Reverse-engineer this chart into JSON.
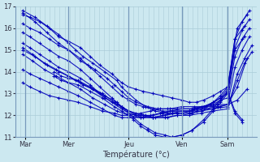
{
  "title": "",
  "xlabel": "Température (°c)",
  "ylabel": "",
  "xlim": [
    0,
    1
  ],
  "ylim": [
    11,
    17
  ],
  "yticks": [
    11,
    12,
    13,
    14,
    15,
    16,
    17
  ],
  "xtick_positions": [
    0.04,
    0.22,
    0.47,
    0.69,
    0.88
  ],
  "xtick_labels": [
    "Mar",
    "Mer",
    "Jeu",
    "Ven",
    "Sam"
  ],
  "background_color": "#cce8f0",
  "grid_color": "#aaccd8",
  "line_color": "#0000bb",
  "vline_positions": [
    0.04,
    0.22,
    0.47,
    0.69,
    0.88
  ],
  "series": [
    {
      "x": [
        0.03,
        0.06,
        0.1,
        0.14,
        0.18,
        0.22,
        0.27,
        0.31,
        0.35,
        0.4,
        0.44,
        0.47,
        0.5,
        0.53,
        0.57,
        0.61,
        0.65,
        0.69,
        0.72,
        0.75,
        0.78,
        0.82,
        0.85,
        0.88,
        0.91,
        0.94,
        0.97
      ],
      "y": [
        16.6,
        16.5,
        16.3,
        16.0,
        15.6,
        15.4,
        15.1,
        14.7,
        14.3,
        13.9,
        13.5,
        13.3,
        13.2,
        13.1,
        13.0,
        12.9,
        12.8,
        12.7,
        12.6,
        12.6,
        12.7,
        12.9,
        13.1,
        13.3,
        15.5,
        16.3,
        16.8
      ]
    },
    {
      "x": [
        0.03,
        0.06,
        0.1,
        0.14,
        0.18,
        0.22,
        0.27,
        0.31,
        0.35,
        0.4,
        0.44,
        0.47,
        0.5,
        0.53,
        0.57,
        0.61,
        0.65,
        0.69,
        0.72,
        0.75,
        0.78,
        0.82,
        0.85,
        0.88,
        0.91,
        0.94,
        0.97
      ],
      "y": [
        16.2,
        16.0,
        15.8,
        15.5,
        15.2,
        15.0,
        14.6,
        14.2,
        13.8,
        13.3,
        12.9,
        12.7,
        12.5,
        12.4,
        12.3,
        12.2,
        12.2,
        12.2,
        12.2,
        12.3,
        12.4,
        12.6,
        12.8,
        13.0,
        15.1,
        15.9,
        16.4
      ]
    },
    {
      "x": [
        0.03,
        0.06,
        0.1,
        0.14,
        0.18,
        0.22,
        0.27,
        0.31,
        0.35,
        0.4,
        0.44,
        0.47,
        0.5,
        0.53,
        0.57,
        0.61,
        0.65,
        0.69,
        0.72,
        0.75,
        0.78,
        0.82,
        0.85,
        0.88,
        0.91,
        0.94,
        0.97
      ],
      "y": [
        15.8,
        15.6,
        15.3,
        15.0,
        14.7,
        14.5,
        14.1,
        13.7,
        13.3,
        12.8,
        12.4,
        12.2,
        12.0,
        11.9,
        11.9,
        12.0,
        12.1,
        12.2,
        12.2,
        12.3,
        12.4,
        12.5,
        12.7,
        12.8,
        14.7,
        15.5,
        16.0
      ]
    },
    {
      "x": [
        0.03,
        0.06,
        0.1,
        0.14,
        0.18,
        0.22,
        0.27,
        0.31,
        0.35,
        0.4,
        0.44,
        0.47,
        0.5,
        0.53,
        0.57,
        0.61,
        0.65,
        0.69,
        0.72,
        0.75,
        0.78,
        0.82,
        0.85,
        0.88,
        0.91,
        0.94,
        0.97
      ],
      "y": [
        15.3,
        15.1,
        14.8,
        14.5,
        14.2,
        14.0,
        13.7,
        13.4,
        13.0,
        12.6,
        12.3,
        12.1,
        12.0,
        12.0,
        12.0,
        12.1,
        12.2,
        12.2,
        12.2,
        12.2,
        12.3,
        12.3,
        12.4,
        12.5,
        14.2,
        15.0,
        15.6
      ]
    },
    {
      "x": [
        0.03,
        0.07,
        0.12,
        0.17,
        0.22,
        0.27,
        0.32,
        0.37,
        0.42,
        0.47,
        0.52,
        0.57,
        0.62,
        0.67,
        0.72,
        0.77,
        0.82,
        0.88,
        0.92,
        0.95,
        0.98
      ],
      "y": [
        15.1,
        14.8,
        14.4,
        14.1,
        13.8,
        13.5,
        13.2,
        12.8,
        12.5,
        12.2,
        12.0,
        11.9,
        11.9,
        12.0,
        12.0,
        12.1,
        12.2,
        12.3,
        13.9,
        14.6,
        15.2
      ]
    },
    {
      "x": [
        0.03,
        0.07,
        0.12,
        0.17,
        0.22,
        0.27,
        0.32,
        0.37,
        0.42,
        0.47,
        0.52,
        0.57,
        0.62,
        0.67,
        0.72,
        0.77,
        0.82,
        0.88,
        0.92,
        0.95,
        0.98
      ],
      "y": [
        14.8,
        14.5,
        14.1,
        13.8,
        13.5,
        13.2,
        12.8,
        12.5,
        12.2,
        12.0,
        11.9,
        11.9,
        12.0,
        12.1,
        12.1,
        12.2,
        12.3,
        12.4,
        13.6,
        14.4,
        14.9
      ]
    },
    {
      "x": [
        0.03,
        0.06,
        0.1,
        0.14,
        0.18,
        0.22,
        0.26,
        0.31,
        0.36,
        0.41,
        0.44,
        0.47,
        0.52,
        0.56,
        0.6,
        0.64,
        0.69,
        0.74,
        0.79,
        0.84,
        0.88,
        0.92,
        0.96
      ],
      "y": [
        14.1,
        13.9,
        13.7,
        13.5,
        13.3,
        13.1,
        12.9,
        12.6,
        12.3,
        12.0,
        11.9,
        11.9,
        11.9,
        12.0,
        12.1,
        12.2,
        12.3,
        12.3,
        12.4,
        12.4,
        12.5,
        13.3,
        14.6
      ]
    },
    {
      "x": [
        0.03,
        0.06,
        0.1,
        0.14,
        0.18,
        0.22,
        0.26,
        0.31,
        0.36,
        0.41,
        0.44,
        0.47,
        0.52,
        0.56,
        0.6,
        0.64,
        0.69,
        0.74,
        0.79,
        0.84,
        0.88,
        0.92,
        0.96
      ],
      "y": [
        13.5,
        13.3,
        13.1,
        12.9,
        12.8,
        12.7,
        12.6,
        12.4,
        12.2,
        12.1,
        12.0,
        12.0,
        12.1,
        12.2,
        12.3,
        12.3,
        12.4,
        12.4,
        12.4,
        12.5,
        12.5,
        12.7,
        13.2
      ]
    },
    {
      "x": [
        0.03,
        0.08,
        0.13,
        0.18,
        0.22,
        0.27,
        0.3,
        0.33,
        0.38,
        0.41,
        0.44,
        0.47,
        0.5,
        0.55,
        0.59,
        0.63,
        0.67,
        0.69,
        0.73,
        0.77,
        0.81,
        0.85,
        0.88,
        0.91,
        0.95
      ],
      "y": [
        16.7,
        16.3,
        15.8,
        15.3,
        15.0,
        14.5,
        14.3,
        14.1,
        13.7,
        13.4,
        13.1,
        12.8,
        12.6,
        12.4,
        12.3,
        12.3,
        12.3,
        12.3,
        12.3,
        12.4,
        12.5,
        12.8,
        13.2,
        15.5,
        16.1
      ]
    },
    {
      "x": [
        0.03,
        0.08,
        0.13,
        0.18,
        0.22,
        0.25,
        0.28,
        0.32,
        0.37,
        0.42,
        0.44,
        0.47,
        0.5,
        0.54,
        0.58,
        0.63,
        0.67,
        0.69,
        0.73,
        0.77,
        0.82,
        0.85,
        0.88,
        0.91,
        0.95
      ],
      "y": [
        15.0,
        14.7,
        14.3,
        14.0,
        13.8,
        13.6,
        13.4,
        13.2,
        12.9,
        12.6,
        12.4,
        12.2,
        12.1,
        12.0,
        11.9,
        11.9,
        12.0,
        12.0,
        12.1,
        12.2,
        12.4,
        12.7,
        13.1,
        15.0,
        15.6
      ]
    },
    {
      "x": [
        0.03,
        0.08,
        0.13,
        0.18,
        0.22,
        0.25,
        0.28,
        0.32,
        0.37,
        0.42,
        0.44,
        0.47,
        0.5,
        0.54,
        0.58,
        0.63,
        0.67,
        0.69,
        0.73,
        0.77,
        0.82,
        0.85,
        0.88,
        0.92,
        0.96
      ],
      "y": [
        16.8,
        16.5,
        16.1,
        15.7,
        15.3,
        15.0,
        14.7,
        14.4,
        14.0,
        13.6,
        13.3,
        13.0,
        12.7,
        12.4,
        12.2,
        12.1,
        12.1,
        12.1,
        12.2,
        12.3,
        12.6,
        12.9,
        13.3,
        16.0,
        16.6
      ]
    },
    {
      "x": [
        0.16,
        0.19,
        0.22,
        0.26,
        0.31,
        0.36,
        0.41,
        0.44,
        0.47,
        0.49,
        0.52,
        0.55,
        0.58,
        0.62,
        0.65,
        0.69,
        0.73,
        0.78,
        0.82,
        0.85,
        0.88,
        0.91,
        0.94
      ],
      "y": [
        14.0,
        13.8,
        13.7,
        13.6,
        13.3,
        13.0,
        12.6,
        12.4,
        12.1,
        11.9,
        11.6,
        11.4,
        11.2,
        11.1,
        11.0,
        11.1,
        11.3,
        11.7,
        12.2,
        12.6,
        13.0,
        12.1,
        11.7
      ]
    },
    {
      "x": [
        0.16,
        0.19,
        0.22,
        0.26,
        0.31,
        0.36,
        0.41,
        0.44,
        0.47,
        0.49,
        0.52,
        0.55,
        0.58,
        0.62,
        0.65,
        0.69,
        0.73,
        0.78,
        0.82,
        0.85,
        0.88,
        0.91,
        0.94
      ],
      "y": [
        13.8,
        13.6,
        13.5,
        13.4,
        13.1,
        12.8,
        12.4,
        12.2,
        12.0,
        11.8,
        11.5,
        11.3,
        11.1,
        11.0,
        11.0,
        11.1,
        11.3,
        11.8,
        12.3,
        12.7,
        13.1,
        12.2,
        11.8
      ]
    }
  ]
}
